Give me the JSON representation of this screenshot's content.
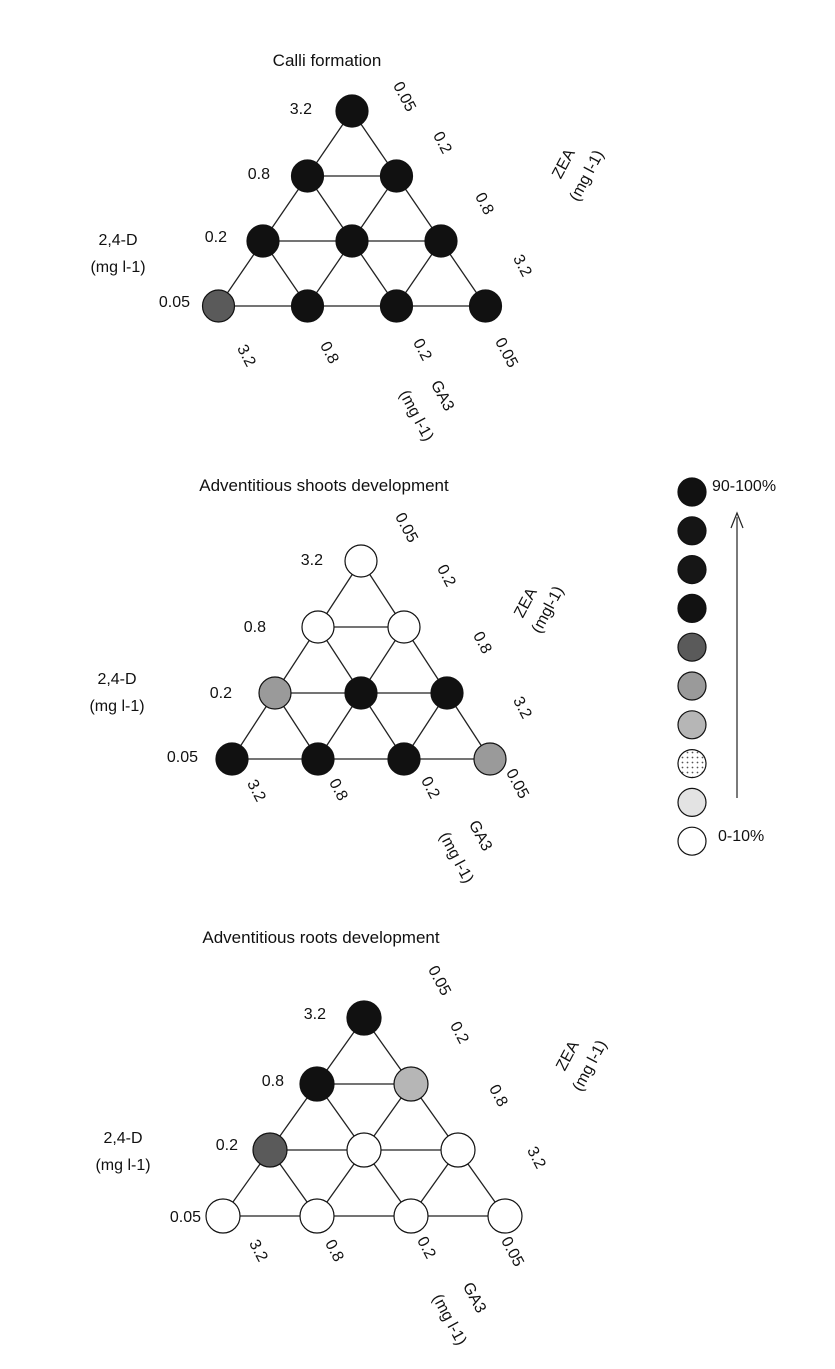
{
  "chart_data": [
    {
      "type": "scatter",
      "title": "Calli formation",
      "axes": {
        "left": {
          "label": "2,4-D",
          "unit": "(mg l-1)",
          "ticks": [
            "3.2",
            "0.8",
            "0.2",
            "0.05"
          ]
        },
        "right": {
          "label": "ZEA",
          "unit": "(mg l-1)",
          "ticks": [
            "0.05",
            "0.2",
            "0.8",
            "3.2"
          ]
        },
        "bottom": {
          "label": "GA3",
          "unit": "(mg l-1)",
          "ticks": [
            "3.2",
            "0.8",
            "0.2",
            "0.05"
          ]
        }
      },
      "points": [
        {
          "d24": "3.2",
          "zea": "0.05",
          "ga3": "0.05",
          "level": 9
        },
        {
          "d24": "0.8",
          "zea": "0.05",
          "ga3": "0.2",
          "level": 9
        },
        {
          "d24": "0.8",
          "zea": "0.2",
          "ga3": "0.05",
          "level": 9
        },
        {
          "d24": "0.2",
          "zea": "0.05",
          "ga3": "0.8",
          "level": 9
        },
        {
          "d24": "0.2",
          "zea": "0.2",
          "ga3": "0.2",
          "level": 9
        },
        {
          "d24": "0.2",
          "zea": "0.8",
          "ga3": "0.05",
          "level": 9
        },
        {
          "d24": "0.05",
          "zea": "0.05",
          "ga3": "3.2",
          "level": 5
        },
        {
          "d24": "0.05",
          "zea": "0.2",
          "ga3": "0.8",
          "level": 9
        },
        {
          "d24": "0.05",
          "zea": "0.8",
          "ga3": "0.2",
          "level": 9
        },
        {
          "d24": "0.05",
          "zea": "3.2",
          "ga3": "0.05",
          "level": 9
        }
      ]
    },
    {
      "type": "scatter",
      "title": "Adventitious shoots development",
      "axes": {
        "left": {
          "label": "2,4-D",
          "unit": "(mg l-1)",
          "ticks": [
            "3.2",
            "0.8",
            "0.2",
            "0.05"
          ]
        },
        "right": {
          "label": "ZEA",
          "unit": "(mgl-1)",
          "ticks": [
            "0.05",
            "0.2",
            "0.8",
            "3.2"
          ]
        },
        "bottom": {
          "label": "GA3",
          "unit": "(mg l-1)",
          "ticks": [
            "3.2",
            "0.8",
            "0.2",
            "0.05"
          ]
        }
      },
      "points": [
        {
          "d24": "3.2",
          "zea": "0.05",
          "ga3": "0.05",
          "level": 0
        },
        {
          "d24": "0.8",
          "zea": "0.05",
          "ga3": "0.2",
          "level": 0
        },
        {
          "d24": "0.8",
          "zea": "0.2",
          "ga3": "0.05",
          "level": 0
        },
        {
          "d24": "0.2",
          "zea": "0.05",
          "ga3": "0.8",
          "level": 4
        },
        {
          "d24": "0.2",
          "zea": "0.2",
          "ga3": "0.2",
          "level": 9
        },
        {
          "d24": "0.2",
          "zea": "0.8",
          "ga3": "0.05",
          "level": 9
        },
        {
          "d24": "0.05",
          "zea": "0.05",
          "ga3": "3.2",
          "level": 9
        },
        {
          "d24": "0.05",
          "zea": "0.2",
          "ga3": "0.8",
          "level": 9
        },
        {
          "d24": "0.05",
          "zea": "0.8",
          "ga3": "0.2",
          "level": 9
        },
        {
          "d24": "0.05",
          "zea": "3.2",
          "ga3": "0.05",
          "level": 4
        }
      ]
    },
    {
      "type": "scatter",
      "title": "Adventitious roots development",
      "axes": {
        "left": {
          "label": "2,4-D",
          "unit": "(mg l-1)",
          "ticks": [
            "3.2",
            "0.8",
            "0.2",
            "0.05"
          ]
        },
        "right": {
          "label": "ZEA",
          "unit": "(mg l-1)",
          "ticks": [
            "0.05",
            "0.2",
            "0.8",
            "3.2"
          ]
        },
        "bottom": {
          "label": "GA3",
          "unit": "(mg l-1)",
          "ticks": [
            "3.2",
            "0.8",
            "0.2",
            "0.05"
          ]
        }
      },
      "points": [
        {
          "d24": "3.2",
          "zea": "0.05",
          "ga3": "0.05",
          "level": 9
        },
        {
          "d24": "0.8",
          "zea": "0.05",
          "ga3": "0.2",
          "level": 9
        },
        {
          "d24": "0.8",
          "zea": "0.2",
          "ga3": "0.05",
          "level": 3
        },
        {
          "d24": "0.2",
          "zea": "0.05",
          "ga3": "0.8",
          "level": 5
        },
        {
          "d24": "0.2",
          "zea": "0.2",
          "ga3": "0.2",
          "level": 0
        },
        {
          "d24": "0.2",
          "zea": "0.8",
          "ga3": "0.05",
          "level": 0
        },
        {
          "d24": "0.05",
          "zea": "0.05",
          "ga3": "3.2",
          "level": 0
        },
        {
          "d24": "0.05",
          "zea": "0.2",
          "ga3": "0.8",
          "level": 0
        },
        {
          "d24": "0.05",
          "zea": "0.8",
          "ga3": "0.2",
          "level": 0
        },
        {
          "d24": "0.05",
          "zea": "3.2",
          "ga3": "0.05",
          "level": 0
        }
      ]
    }
  ],
  "legend": {
    "top_label": "90-100%",
    "bottom_label": "0-10%",
    "levels": [
      {
        "level": 9,
        "fill": "#111111",
        "pattern": "solid"
      },
      {
        "level": 8,
        "fill": "#151515",
        "pattern": "solid"
      },
      {
        "level": 7,
        "fill": "#161616",
        "pattern": "solid"
      },
      {
        "level": 6,
        "fill": "#121212",
        "pattern": "solid"
      },
      {
        "level": 5,
        "fill": "#5a5a5a",
        "pattern": "solid"
      },
      {
        "level": 4,
        "fill": "#9a9a9a",
        "pattern": "solid"
      },
      {
        "level": 3,
        "fill": "#b6b6b6",
        "pattern": "solid"
      },
      {
        "level": 2,
        "fill": "#ffffff",
        "pattern": "dots"
      },
      {
        "level": 1,
        "fill": "#e3e3e3",
        "pattern": "solid"
      },
      {
        "level": 0,
        "fill": "#ffffff",
        "pattern": "solid"
      }
    ]
  }
}
